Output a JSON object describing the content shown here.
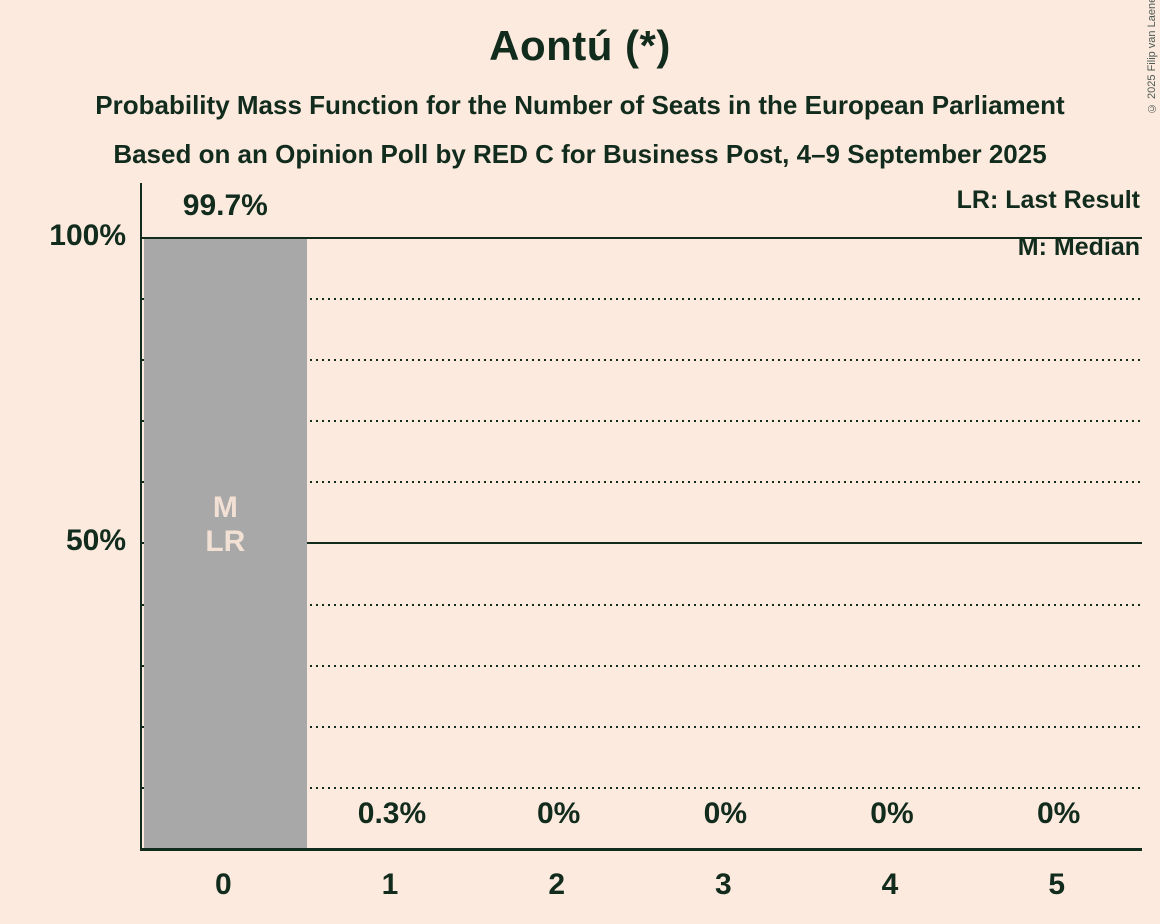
{
  "title": "Aontú (*)",
  "subtitle_line1": "Probability Mass Function for the Number of Seats in the European Parliament",
  "subtitle_line2": "Based on an Opinion Poll by RED C for Business Post, 4–9 September 2025",
  "copyright": "© 2025 Filip van Laenen",
  "legend": {
    "last_result": "LR: Last Result",
    "median": "M: Median"
  },
  "y_axis": {
    "labels": [
      "100%",
      "50%"
    ],
    "ticks_percent": [
      100,
      50
    ]
  },
  "colors": {
    "background": "#fceade",
    "text": "#112b1d",
    "bar": "#a8a8a8",
    "bar_label_text": "#f3e0d4",
    "copyright_text": "#4e5b54"
  },
  "chart_data": {
    "type": "bar",
    "title": "Aontú (*)",
    "categories": [
      "0",
      "1",
      "2",
      "3",
      "4",
      "5"
    ],
    "values": [
      99.7,
      0.3,
      0,
      0,
      0,
      0
    ],
    "value_labels": [
      "99.7%",
      "0.3%",
      "0%",
      "0%",
      "0%",
      "0%"
    ],
    "xlabel": "",
    "ylabel": "",
    "ylim": [
      0,
      100
    ],
    "legend_position": "top-right",
    "gridlines": {
      "dotted_percent": [
        90,
        80,
        70,
        60,
        40,
        30,
        20,
        10
      ],
      "solid_percent": [
        100,
        50
      ]
    },
    "annotation_seat": 0,
    "bar_annotations": [
      "M",
      "LR"
    ],
    "median_seat": 0,
    "last_result_seat": 0
  }
}
